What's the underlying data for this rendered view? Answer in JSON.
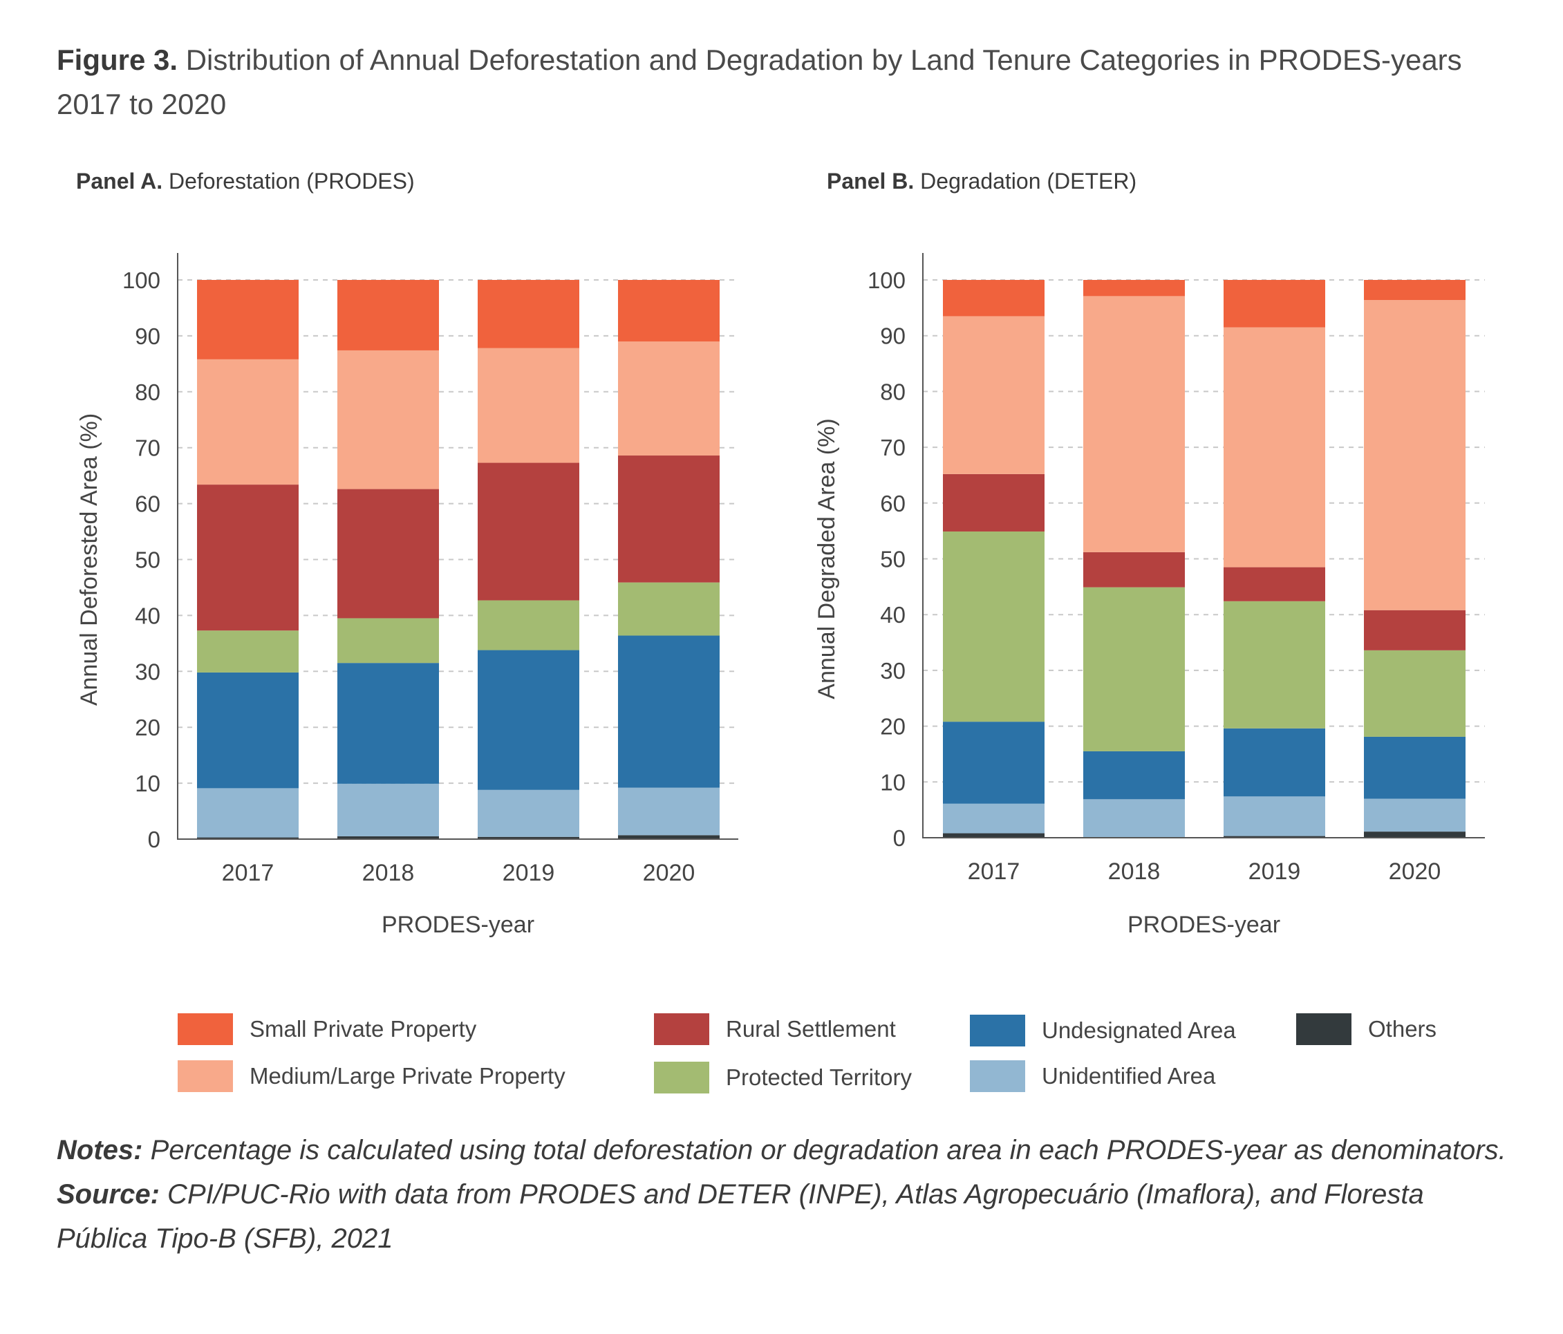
{
  "figure": {
    "label": "Figure 3.",
    "title": "Distribution of Annual Deforestation and Degradation by Land Tenure Categories in PRODES-years 2017 to 2020"
  },
  "legend_items": [
    {
      "key": "small_private",
      "label": "Small Private Property",
      "color": "#f0623d"
    },
    {
      "key": "medium_large_private",
      "label": "Medium/Large Private Property",
      "color": "#f8a98a"
    },
    {
      "key": "rural_settlement",
      "label": "Rural Settlement",
      "color": "#b4413f"
    },
    {
      "key": "protected",
      "label": "Protected Territory",
      "color": "#a3bb72"
    },
    {
      "key": "undesignated",
      "label": "Undesignated Area",
      "color": "#2b72a7"
    },
    {
      "key": "unidentified",
      "label": "Unidentified Area",
      "color": "#92b7d2"
    },
    {
      "key": "others",
      "label": "Others",
      "color": "#333a3d"
    }
  ],
  "notes": {
    "notes_label": "Notes:",
    "notes_text": " Percentage is calculated using total deforestation or degradation area in each PRODES-year as denominators.",
    "source_label": "Source:",
    "source_text": " CPI/PUC-Rio with data from PRODES and DETER (INPE), Atlas Agropecuário (Imaflora), and Floresta Pública Tipo-B (SFB), 2021"
  },
  "chart_data": [
    {
      "panel_label": "Panel A.",
      "panel_title": "Deforestation (PRODES)",
      "type": "bar",
      "stacked": true,
      "categories": [
        "2017",
        "2018",
        "2019",
        "2020"
      ],
      "xlabel": "PRODES-year",
      "ylabel": "Annual Deforested Area (%)",
      "ylim": [
        0,
        100
      ],
      "yticks": [
        0,
        10,
        20,
        30,
        40,
        50,
        60,
        70,
        80,
        90,
        100
      ],
      "grid": true,
      "series": [
        {
          "name": "Others",
          "values": [
            0.3,
            0.5,
            0.4,
            0.7
          ]
        },
        {
          "name": "Unidentified Area",
          "values": [
            8.8,
            9.4,
            8.4,
            8.5
          ]
        },
        {
          "name": "Undesignated Area",
          "values": [
            20.7,
            21.6,
            25.0,
            27.2
          ]
        },
        {
          "name": "Protected Territory",
          "values": [
            7.5,
            8.0,
            8.9,
            9.5
          ]
        },
        {
          "name": "Rural Settlement",
          "values": [
            26.1,
            23.1,
            24.6,
            22.7
          ]
        },
        {
          "name": "Medium/Large Private Property",
          "values": [
            22.4,
            24.8,
            20.5,
            20.4
          ]
        },
        {
          "name": "Small Private Property",
          "values": [
            14.2,
            12.6,
            12.2,
            11.0
          ]
        }
      ]
    },
    {
      "panel_label": "Panel B.",
      "panel_title": "Degradation (DETER)",
      "type": "bar",
      "stacked": true,
      "categories": [
        "2017",
        "2018",
        "2019",
        "2020"
      ],
      "xlabel": "PRODES-year",
      "ylabel": "Annual Degraded Area (%)",
      "ylim": [
        0,
        100
      ],
      "yticks": [
        0,
        10,
        20,
        30,
        40,
        50,
        60,
        70,
        80,
        90,
        100
      ],
      "grid": true,
      "series": [
        {
          "name": "Others",
          "values": [
            0.8,
            0.1,
            0.3,
            1.1
          ]
        },
        {
          "name": "Unidentified Area",
          "values": [
            5.3,
            6.8,
            7.1,
            5.9
          ]
        },
        {
          "name": "Undesignated Area",
          "values": [
            14.7,
            8.6,
            12.2,
            11.1
          ]
        },
        {
          "name": "Protected Territory",
          "values": [
            34.1,
            29.4,
            22.8,
            15.5
          ]
        },
        {
          "name": "Rural Settlement",
          "values": [
            10.3,
            6.3,
            6.1,
            7.2
          ]
        },
        {
          "name": "Medium/Large Private Property",
          "values": [
            28.3,
            45.9,
            43.0,
            55.6
          ]
        },
        {
          "name": "Small Private Property",
          "values": [
            6.5,
            2.9,
            8.5,
            3.6
          ]
        }
      ]
    }
  ]
}
